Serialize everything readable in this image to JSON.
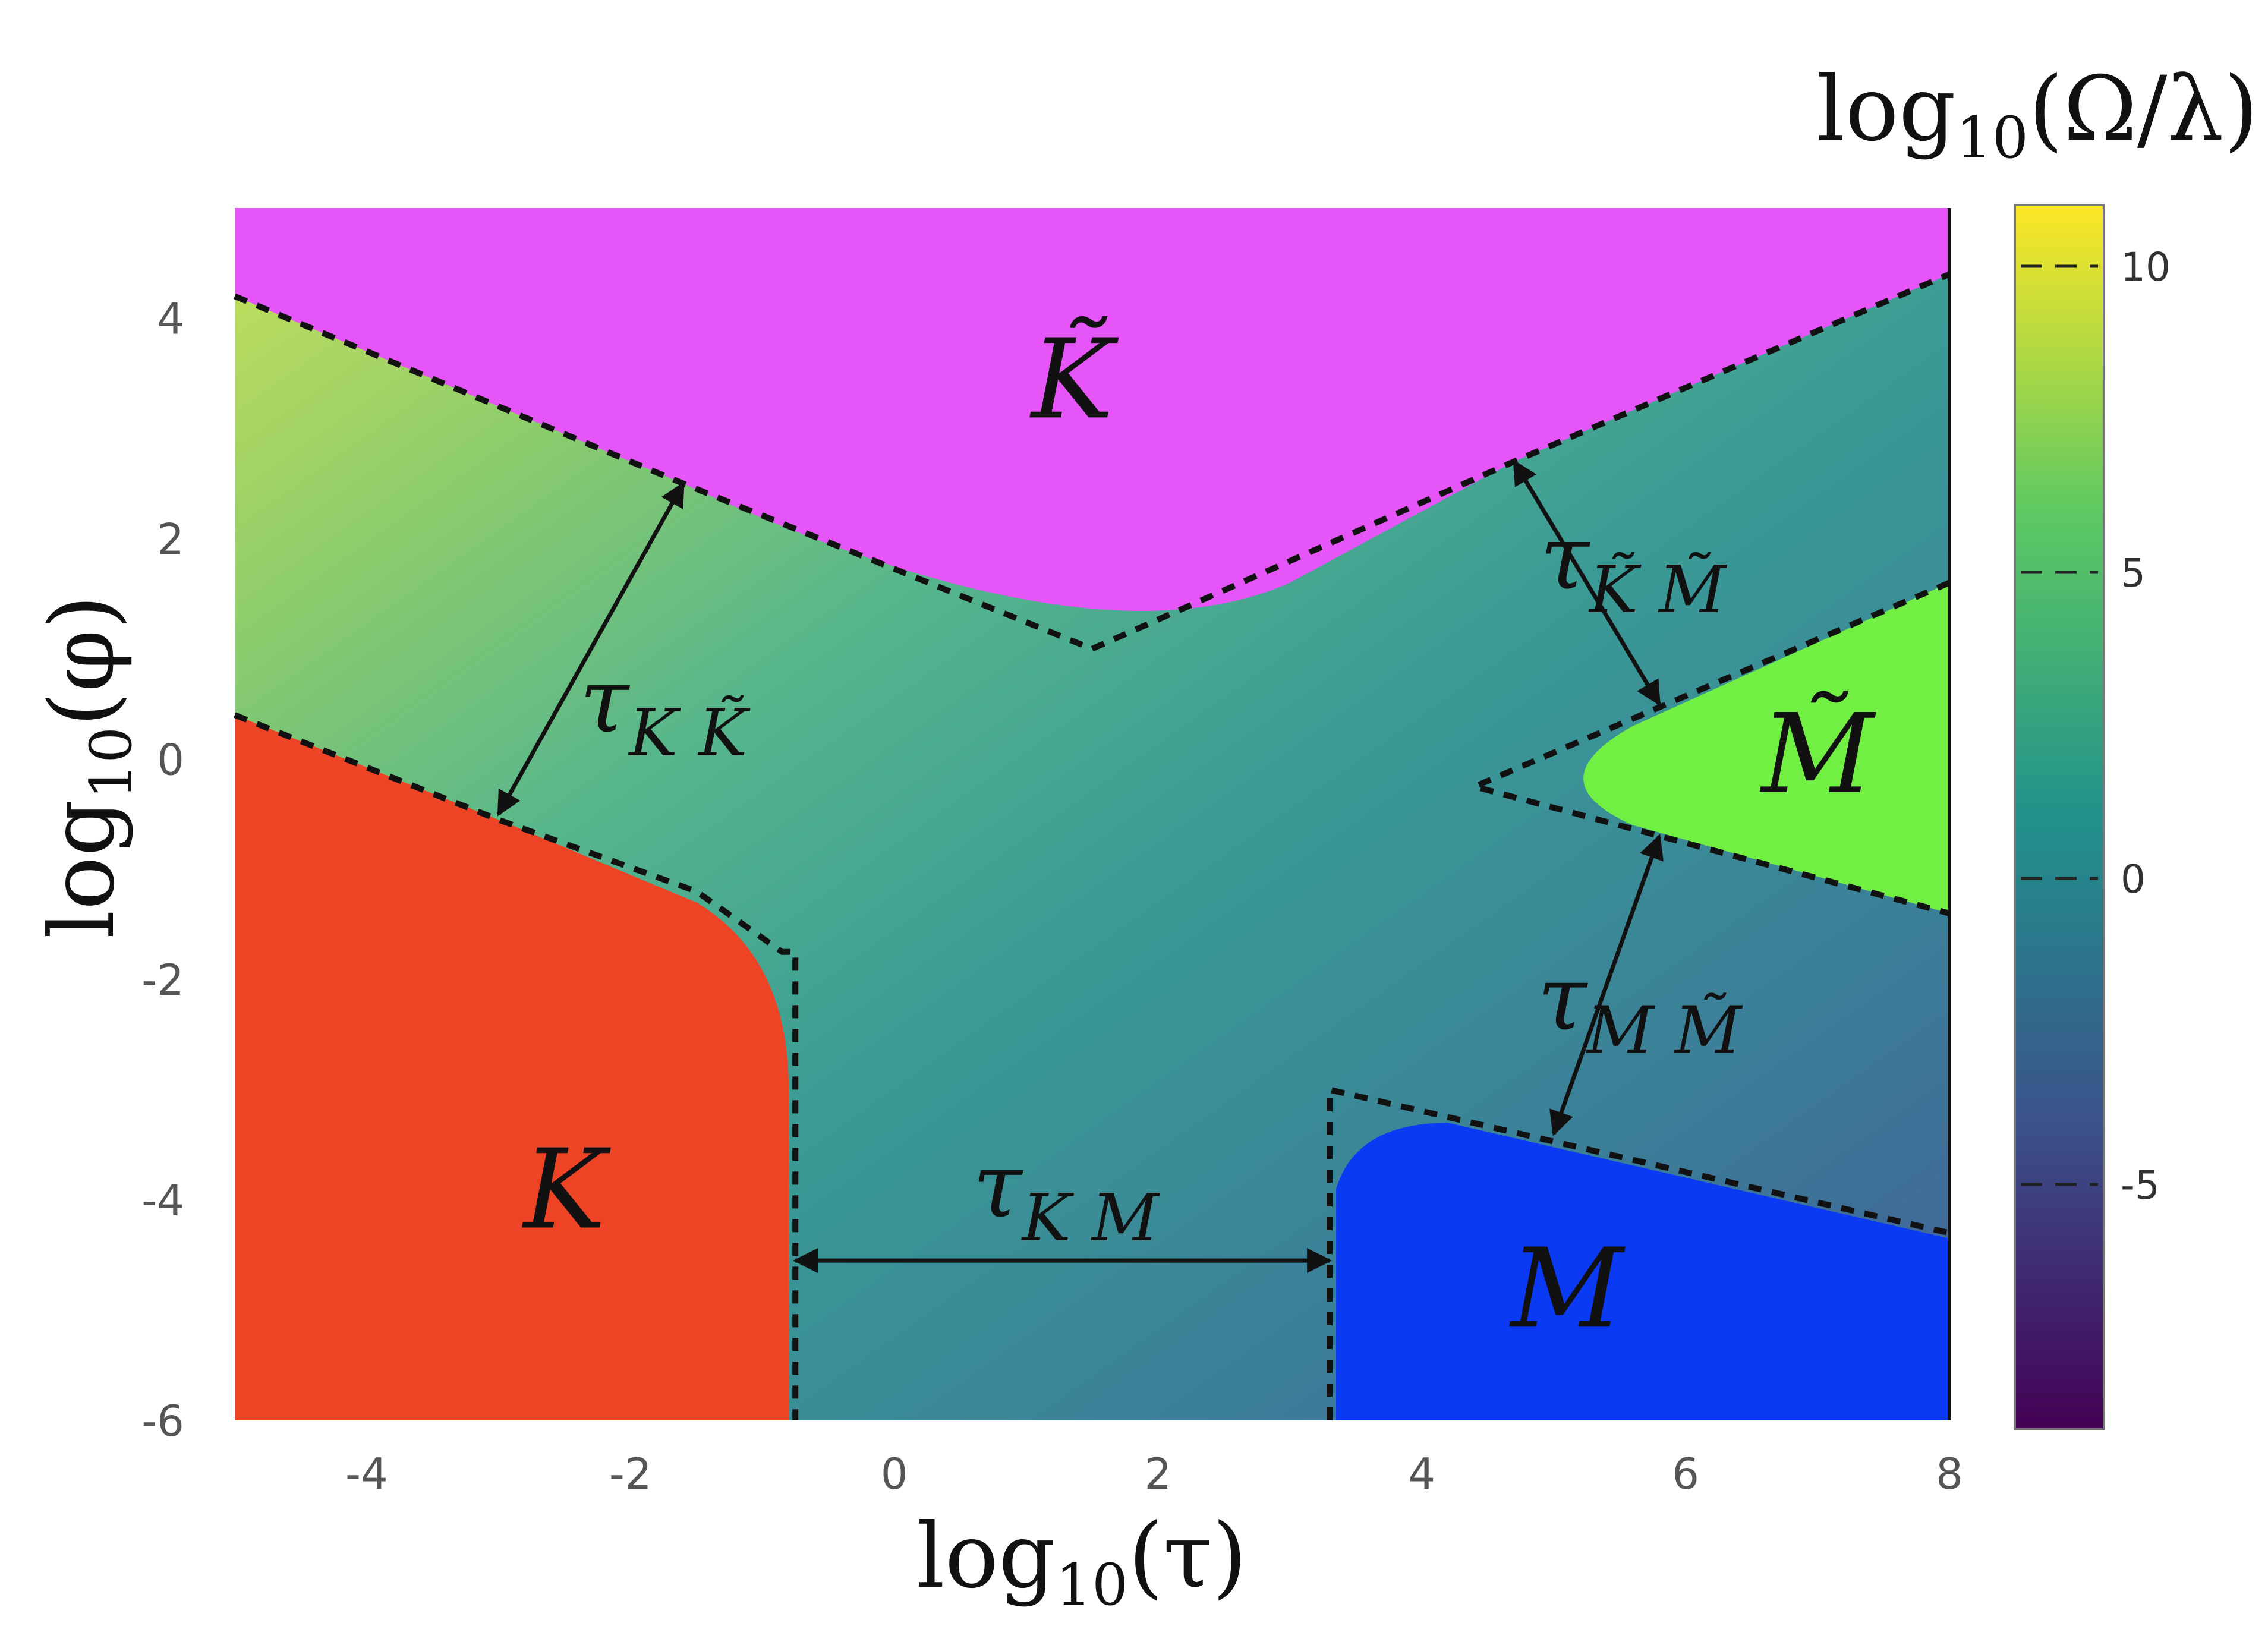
{
  "chart_data": {
    "type": "heatmap",
    "xlabel": {
      "base": "log",
      "sub": "10",
      "arg": "(τ)"
    },
    "ylabel": {
      "base": "log",
      "sub": "10",
      "arg": "(φ)"
    },
    "xlim": [
      -5,
      8
    ],
    "ylim": [
      -6,
      5
    ],
    "xticks": [
      -4,
      -2,
      0,
      2,
      4,
      6,
      8
    ],
    "yticks": [
      -6,
      -4,
      -2,
      0,
      2,
      4
    ],
    "colorbar": {
      "title": {
        "base": "log",
        "sub": "10",
        "arg": "(Ω/λ)"
      },
      "range": [
        -9,
        11
      ],
      "ticks": [
        -5,
        0,
        5,
        10
      ],
      "colormap": "viridis"
    },
    "regions": [
      {
        "label": "K",
        "tilde": true,
        "color": "#e655f7",
        "boundary": [
          [
            -5,
            4.2
          ],
          [
            -1.6,
            2.5
          ],
          [
            1.5,
            1.0
          ],
          [
            4.7,
            2.7
          ],
          [
            8,
            4.4
          ]
        ]
      },
      {
        "label": "K",
        "tilde": false,
        "color": "#ee4426",
        "boundary": [
          [
            -5,
            0.4
          ],
          [
            -3.0,
            -0.6
          ],
          [
            -1.0,
            -1.7
          ],
          [
            -0.75,
            -6
          ]
        ]
      },
      {
        "label": "M",
        "tilde": false,
        "color": "#0b3af5",
        "boundary": [
          [
            3.3,
            -6
          ],
          [
            3.3,
            -3.0
          ],
          [
            8,
            -4.3
          ]
        ]
      },
      {
        "label": "M",
        "tilde": true,
        "color": "#72ef43",
        "boundary": [
          [
            4.4,
            -0.2
          ],
          [
            8,
            1.6
          ],
          [
            8,
            -1.4
          ]
        ]
      }
    ],
    "annotations": [
      {
        "label": "τ",
        "sub": [
          "K",
          "K̃"
        ],
        "arrow": [
          [
            -1.6,
            2.5
          ],
          [
            -3.0,
            -0.5
          ]
        ]
      },
      {
        "label": "τ",
        "sub": [
          "K̃",
          "M̃"
        ],
        "arrow": [
          [
            4.7,
            2.7
          ],
          [
            5.8,
            0.5
          ]
        ]
      },
      {
        "label": "τ",
        "sub": [
          "M",
          "M̃"
        ],
        "arrow": [
          [
            5.8,
            -0.7
          ],
          [
            5.0,
            -3.4
          ]
        ]
      },
      {
        "label": "τ",
        "sub": [
          "K",
          "M"
        ],
        "arrow": [
          [
            -0.75,
            -4.55
          ],
          [
            3.3,
            -4.55
          ]
        ]
      }
    ],
    "colors": {
      "cmap_stops": [
        "#440154",
        "#3b528b",
        "#21918c",
        "#5ec962",
        "#fde725"
      ]
    }
  }
}
